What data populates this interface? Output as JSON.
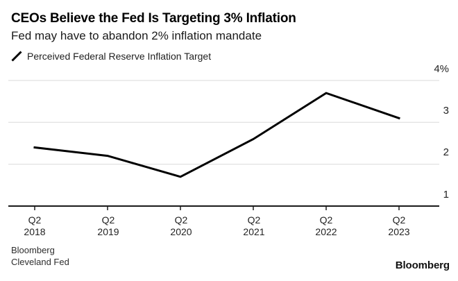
{
  "header": {
    "title": "CEOs Believe the Fed Is Targeting 3% Inflation",
    "subtitle": "Fed may have to abandon 2% inflation mandate"
  },
  "legend": {
    "icon": "line-slash-icon",
    "label": "Perceived Federal Reserve Inflation Target"
  },
  "chart_data": {
    "type": "line",
    "title": "CEOs Believe the Fed Is Targeting 3% Inflation",
    "subtitle": "Fed may have to abandon 2% inflation mandate",
    "categories": [
      "Q2 2018",
      "Q2 2019",
      "Q2 2020",
      "Q2 2021",
      "Q2 2022",
      "Q2 2023"
    ],
    "series": [
      {
        "name": "Perceived Federal Reserve Inflation Target",
        "values": [
          2.4,
          2.2,
          1.7,
          2.6,
          3.7,
          3.1
        ]
      }
    ],
    "x_ticks": [
      {
        "quarter": "Q2",
        "year": "2018"
      },
      {
        "quarter": "Q2",
        "year": "2019"
      },
      {
        "quarter": "Q2",
        "year": "2020"
      },
      {
        "quarter": "Q2",
        "year": "2021"
      },
      {
        "quarter": "Q2",
        "year": "2022"
      },
      {
        "quarter": "Q2",
        "year": "2023"
      }
    ],
    "y_ticks": [
      {
        "value": 4,
        "label": "4%"
      },
      {
        "value": 3,
        "label": "3"
      },
      {
        "value": 2,
        "label": "2"
      },
      {
        "value": 1,
        "label": "1"
      }
    ],
    "ylim": [
      1,
      4
    ],
    "grid": "horizontal",
    "legend_position": "top-left",
    "line_color": "#000000",
    "line_width": 3
  },
  "colors": {
    "background": "#ffffff",
    "gridline": "#d9d9d9",
    "axis": "#1a1a1a",
    "series_line": "#000000"
  },
  "footer": {
    "source_line1": "Bloomberg",
    "source_line2": "Cleveland Fed",
    "brand": "Bloomberg"
  }
}
